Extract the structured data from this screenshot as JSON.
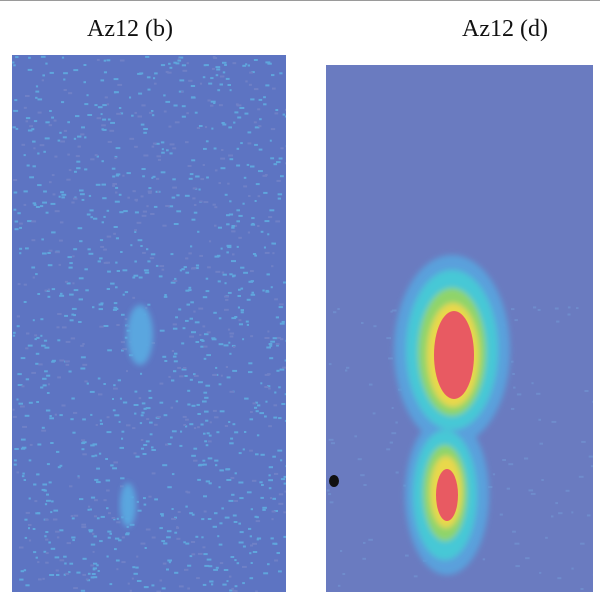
{
  "panels": [
    {
      "label": "Az12 (b)"
    },
    {
      "label": "Az12 (d)"
    }
  ]
}
